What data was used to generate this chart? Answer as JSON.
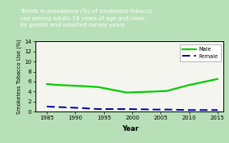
{
  "title_lines": "Trends in prevalence (%) of smokeless tobacco\nuse among adults 18 years of age and older,\nby gender and selected survey years",
  "title_bg": "#0d1a4a",
  "title_color": "#ffffff",
  "plot_bg": "#f0f0f0",
  "outer_bg": "#b8e0b8",
  "plot_inner_bg": "#f5f5f0",
  "xlabel": "Year",
  "ylabel": "Smokeless Tobacco Use (%)",
  "xlim": [
    1983,
    2016
  ],
  "ylim": [
    0,
    14
  ],
  "yticks": [
    0,
    2,
    4,
    6,
    8,
    10,
    12,
    14
  ],
  "xticks": [
    1985,
    1990,
    1995,
    2000,
    2005,
    2010,
    2015
  ],
  "male_years": [
    1985,
    1987,
    1991,
    1994,
    1999,
    2004,
    2006,
    2010,
    2015
  ],
  "male_values": [
    5.5,
    5.3,
    5.1,
    4.9,
    3.8,
    4.0,
    4.1,
    5.3,
    6.5
  ],
  "female_years": [
    1985,
    1987,
    1991,
    1994,
    1999,
    2004,
    2006,
    2010,
    2015
  ],
  "female_values": [
    1.0,
    0.9,
    0.7,
    0.5,
    0.5,
    0.4,
    0.4,
    0.3,
    0.3
  ],
  "male_color": "#00cc00",
  "female_color": "#000099",
  "male_lw": 1.6,
  "female_lw": 1.4,
  "legend_male": "Male",
  "legend_female": "Female",
  "axis_color": "#000000",
  "tick_labelsize": 5.0,
  "ylabel_fontsize": 4.8,
  "xlabel_fontsize": 6.0,
  "title_fontsize": 5.0
}
